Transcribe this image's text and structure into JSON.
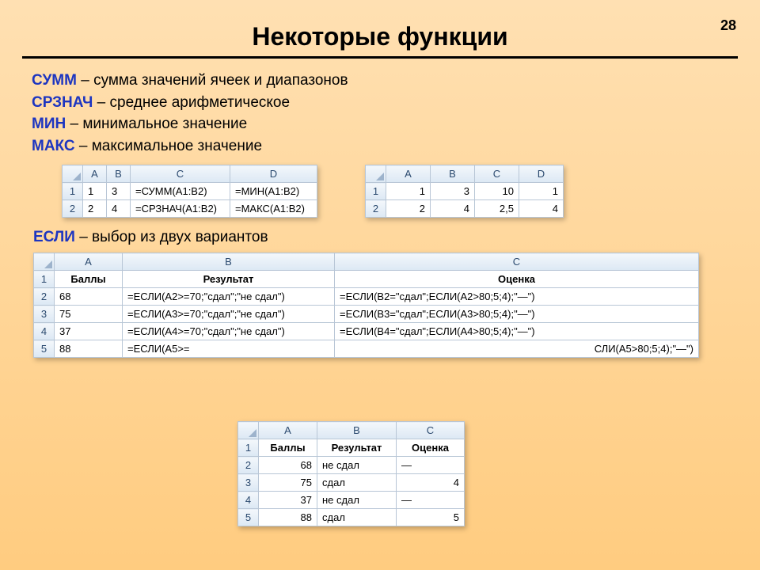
{
  "page_number": "28",
  "title": "Некоторые функции",
  "defs": [
    {
      "fn": "СУММ",
      "desc": " – сумма значений ячеек и диапазонов"
    },
    {
      "fn": "СРЗНАЧ",
      "desc": " – среднее арифметическое"
    },
    {
      "fn": "МИН",
      "desc": " – минимальное значение"
    },
    {
      "fn": "МАКС",
      "desc": " – максимальное значение"
    }
  ],
  "if_line": {
    "fn": "ЕСЛИ",
    "desc": " – выбор из двух вариантов"
  },
  "t1": {
    "cols": [
      "A",
      "B",
      "C",
      "D"
    ],
    "rows": [
      {
        "n": "1",
        "A": "1",
        "B": "3",
        "C": "=СУММ(A1:B2)",
        "D": "=МИН(A1:B2)"
      },
      {
        "n": "2",
        "A": "2",
        "B": "4",
        "C": "=СРЗНАЧ(A1:B2)",
        "D": "=МАКС(A1:B2)"
      }
    ]
  },
  "t2": {
    "cols": [
      "A",
      "B",
      "C",
      "D"
    ],
    "rows": [
      {
        "n": "1",
        "A": "1",
        "B": "3",
        "C": "10",
        "D": "1"
      },
      {
        "n": "2",
        "A": "2",
        "B": "4",
        "C": "2,5",
        "D": "4"
      }
    ]
  },
  "t3": {
    "cols": [
      "A",
      "B",
      "C"
    ],
    "header_row": {
      "n": "1",
      "A": "Баллы",
      "B": "Результат",
      "C": "Оценка"
    },
    "rows": [
      {
        "n": "2",
        "A": "68",
        "B": "=ЕСЛИ(A2>=70;\"сдал\";\"не сдал\")",
        "C": "=ЕСЛИ(B2=\"сдал\";ЕСЛИ(A2>80;5;4);\"—\")"
      },
      {
        "n": "3",
        "A": "75",
        "B": "=ЕСЛИ(A3>=70;\"сдал\";\"не сдал\")",
        "C": "=ЕСЛИ(B3=\"сдал\";ЕСЛИ(A3>80;5;4);\"—\")"
      },
      {
        "n": "4",
        "A": "37",
        "B": "=ЕСЛИ(A4>=70;\"сдал\";\"не сдал\")",
        "C": "=ЕСЛИ(B4=\"сдал\";ЕСЛИ(A4>80;5;4);\"—\")"
      },
      {
        "n": "5",
        "A": "88",
        "B": "=ЕСЛИ(A5>=",
        "C": "СЛИ(A5>80;5;4);\"—\")"
      }
    ]
  },
  "t4": {
    "cols": [
      "A",
      "B",
      "C"
    ],
    "header_row": {
      "n": "1",
      "A": "Баллы",
      "B": "Результат",
      "C": "Оценка"
    },
    "rows": [
      {
        "n": "2",
        "A": "68",
        "B": "не сдал",
        "C": "—"
      },
      {
        "n": "3",
        "A": "75",
        "B": "сдал",
        "C": "4"
      },
      {
        "n": "4",
        "A": "37",
        "B": "не сдал",
        "C": "—"
      },
      {
        "n": "5",
        "A": "88",
        "B": "сдал",
        "C": "5"
      }
    ]
  }
}
